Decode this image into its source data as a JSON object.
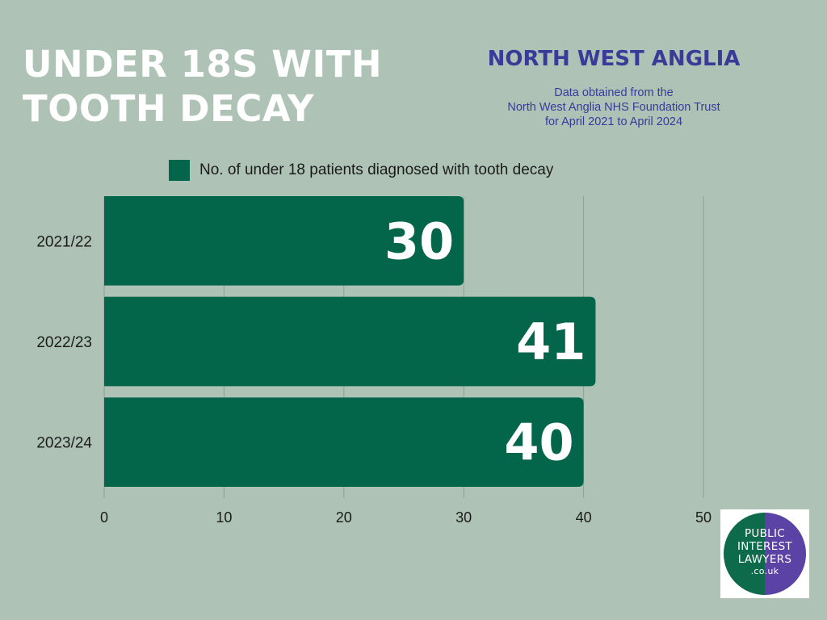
{
  "header": {
    "title_line1": "UNDER 18S WITH",
    "title_line2": "TOOTH DECAY",
    "region": "NORTH WEST ANGLIA",
    "source_line1": "Data obtained from the",
    "source_line2": "North West Anglia NHS Foundation Trust",
    "source_line3": "for April 2021 to April 2024"
  },
  "colors": {
    "background": "#aec3b6",
    "bar": "#03664a",
    "title": "#ffffff",
    "accent": "#3a3a99"
  },
  "chart_data": {
    "type": "bar",
    "orientation": "horizontal",
    "categories": [
      "2021/22",
      "2022/23",
      "2023/24"
    ],
    "series": [
      {
        "name": "No. of under 18 patients diagnosed with tooth decay",
        "values": [
          30,
          41,
          40
        ]
      }
    ],
    "xlim": [
      0,
      50
    ],
    "xticks": [
      0,
      10,
      20,
      30,
      40,
      50
    ],
    "grid": true,
    "legend_position": "top",
    "data_labels": true
  },
  "logo": {
    "line1": "PUBLIC",
    "line2": "INTEREST",
    "line3": "LAWYERS",
    "line4": ".co.uk"
  }
}
